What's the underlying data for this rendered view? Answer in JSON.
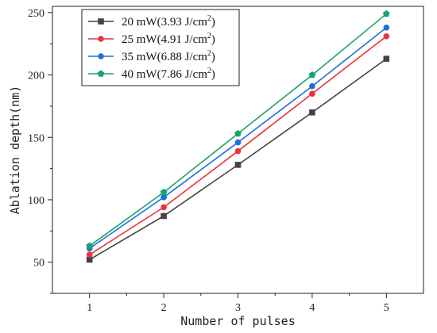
{
  "chart_data": {
    "type": "line",
    "xlabel": "Number of pulses",
    "ylabel": "Ablation depth(nm)",
    "x": [
      1,
      2,
      3,
      4,
      5
    ],
    "xlim": [
      0.5,
      5.5
    ],
    "ylim": [
      25,
      255
    ],
    "xticks": [
      "1",
      "2",
      "3",
      "4",
      "5"
    ],
    "yticks": [
      "50",
      "100",
      "150",
      "200",
      "250"
    ],
    "grid": false,
    "legend_position": "top-left",
    "series": [
      {
        "name": "20 mW(3.93 J/cm2)",
        "legend_main": "20 mW(3.93 J/cm",
        "legend_sup": "2",
        "legend_close": ")",
        "values": [
          52,
          87,
          128,
          170,
          213
        ],
        "color": "#444444",
        "marker": "square"
      },
      {
        "name": "25 mW(4.91 J/cm2)",
        "legend_main": "25 mW(4.91 J/cm",
        "legend_sup": "2",
        "legend_close": ")",
        "values": [
          56,
          94,
          139,
          185,
          231
        ],
        "color": "#e8333a",
        "marker": "circle"
      },
      {
        "name": "35 mW(6.88 J/cm2)",
        "legend_main": "35 mW(6.88 J/cm",
        "legend_sup": "2",
        "legend_close": ")",
        "values": [
          61,
          102,
          146,
          191,
          238
        ],
        "color": "#1f6fdb",
        "marker": "circle"
      },
      {
        "name": "40 mW(7.86 J/cm2)",
        "legend_main": "40 mW(7.86 J/cm",
        "legend_sup": "2",
        "legend_close": ")",
        "values": [
          63,
          106,
          153,
          200,
          249
        ],
        "color": "#1aa36a",
        "marker": "pentagon"
      }
    ]
  }
}
